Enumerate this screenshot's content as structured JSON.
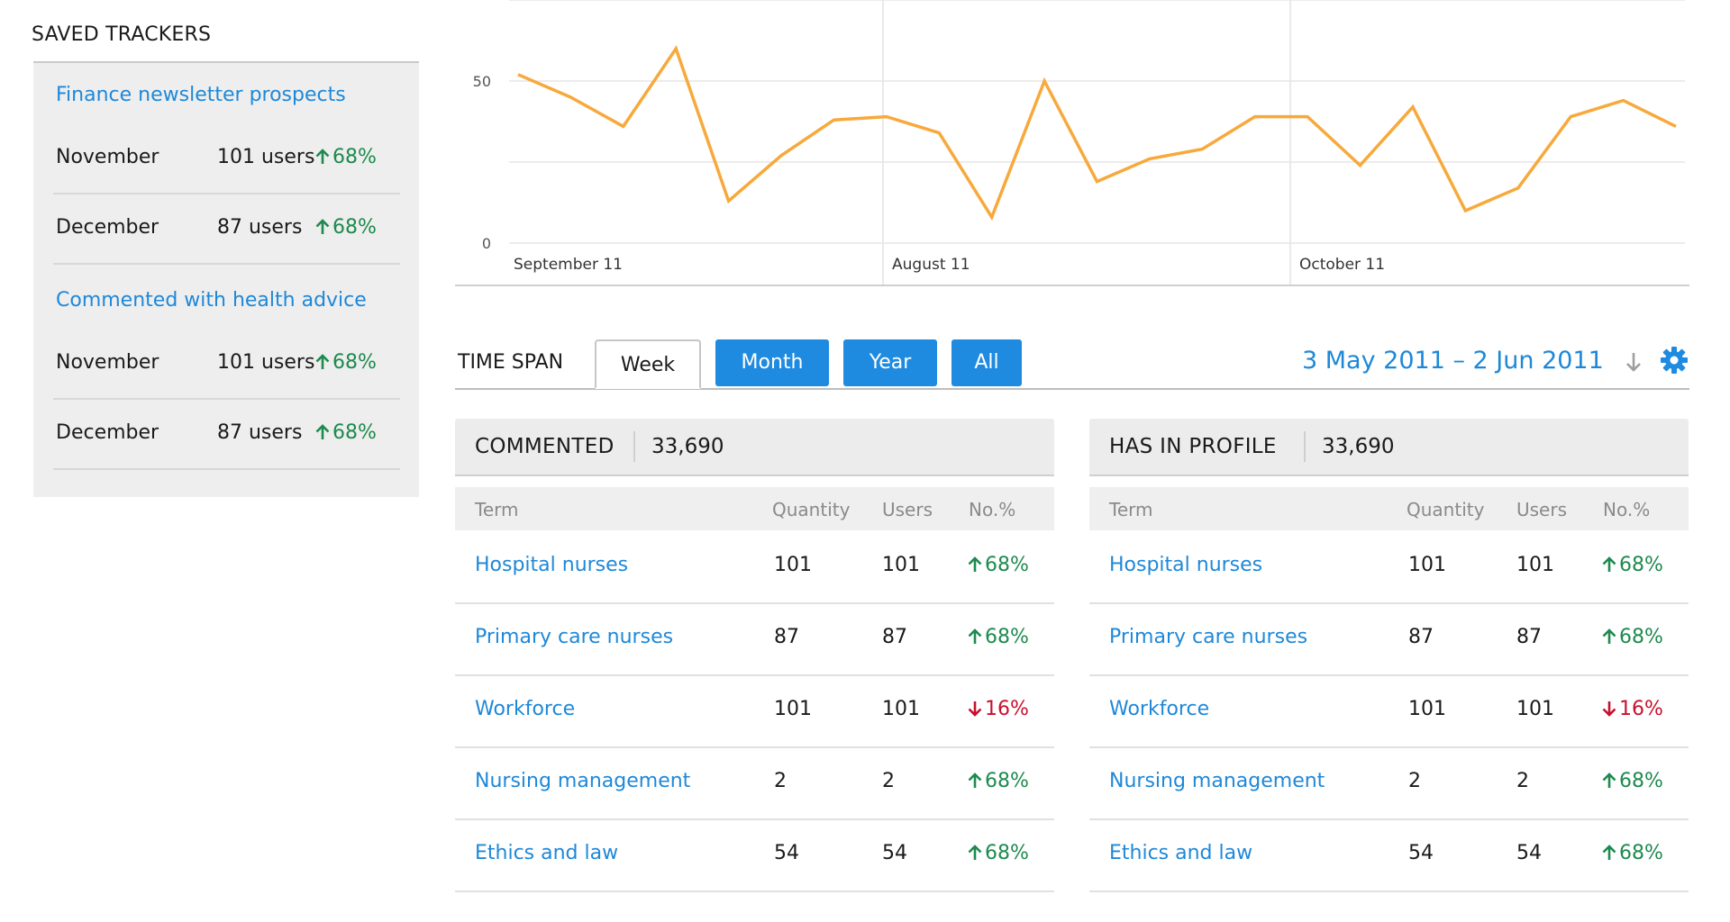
{
  "sidebar": {
    "title": "SAVED TRACKERS",
    "trackers": [
      {
        "name": "Finance newsletter prospects",
        "rows": [
          {
            "month": "November",
            "users": "101 users",
            "trend": "68%",
            "direction": "up"
          },
          {
            "month": "December",
            "users": "87 users",
            "trend": "68%",
            "direction": "up"
          }
        ]
      },
      {
        "name": "Commented with health advice",
        "rows": [
          {
            "month": "November",
            "users": "101 users",
            "trend": "68%",
            "direction": "up"
          },
          {
            "month": "December",
            "users": "87 users",
            "trend": "68%",
            "direction": "up"
          }
        ]
      }
    ]
  },
  "chart_data": {
    "type": "line",
    "title": "",
    "xlabel": "",
    "ylabel": "",
    "x_tick_labels": [
      "September 11",
      "August 11",
      "October 11"
    ],
    "y_ticks": [
      0,
      50
    ],
    "ylim": [
      0,
      75
    ],
    "grid": true,
    "color": "#f7a93b",
    "series": [
      {
        "values": [
          52,
          45,
          36,
          60,
          13,
          27,
          38,
          39,
          34,
          8,
          50,
          19,
          26,
          29,
          39,
          39,
          24,
          42,
          10,
          17,
          39,
          44,
          36
        ]
      }
    ]
  },
  "timespan": {
    "label": "TIME SPAN",
    "tabs": [
      "Week",
      "Month",
      "Year",
      "All"
    ],
    "active": "Week",
    "date_range": "3 May 2011 – 2 Jun 2011",
    "icons": [
      "download-arrow-icon",
      "gear-icon"
    ]
  },
  "colors": {
    "accent": "#1f8be0",
    "link": "#1e88d8",
    "up": "#1d8a4e",
    "down": "#c8102e",
    "line": "#f7a93b"
  },
  "tables": [
    {
      "title": "COMMENTED",
      "total": "33,690",
      "columns": [
        "Term",
        "Quantity",
        "Users",
        "No.%"
      ],
      "rows": [
        {
          "term": "Hospital nurses",
          "quantity": "101",
          "users": "101",
          "pct": "68%",
          "direction": "up"
        },
        {
          "term": "Primary care nurses",
          "quantity": "87",
          "users": "87",
          "pct": "68%",
          "direction": "up"
        },
        {
          "term": "Workforce",
          "quantity": "101",
          "users": "101",
          "pct": "16%",
          "direction": "down"
        },
        {
          "term": "Nursing management",
          "quantity": "2",
          "users": "2",
          "pct": "68%",
          "direction": "up"
        },
        {
          "term": "Ethics and law",
          "quantity": "54",
          "users": "54",
          "pct": "68%",
          "direction": "up"
        }
      ]
    },
    {
      "title": "HAS IN PROFILE",
      "total": "33,690",
      "columns": [
        "Term",
        "Quantity",
        "Users",
        "No.%"
      ],
      "rows": [
        {
          "term": "Hospital nurses",
          "quantity": "101",
          "users": "101",
          "pct": "68%",
          "direction": "up"
        },
        {
          "term": "Primary care nurses",
          "quantity": "87",
          "users": "87",
          "pct": "68%",
          "direction": "up"
        },
        {
          "term": "Workforce",
          "quantity": "101",
          "users": "101",
          "pct": "16%",
          "direction": "down"
        },
        {
          "term": "Nursing management",
          "quantity": "2",
          "users": "2",
          "pct": "68%",
          "direction": "up"
        },
        {
          "term": "Ethics and law",
          "quantity": "54",
          "users": "54",
          "pct": "68%",
          "direction": "up"
        }
      ]
    }
  ]
}
